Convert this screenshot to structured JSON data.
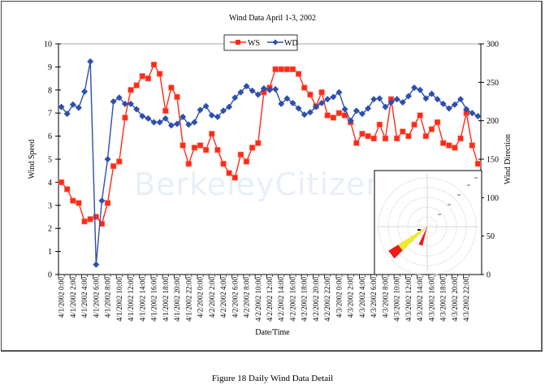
{
  "figure": {
    "caption": "Figure 18  Daily Wind Data Detail",
    "watermark": "BerkeleyCitizen"
  },
  "chart_data": {
    "type": "line",
    "title": "Wind Data April 1-3, 2002",
    "xlabel": "Date/Time",
    "ylabel": "Wind Speed",
    "y2label": "Wind Direction",
    "ylim": [
      0,
      10
    ],
    "y2lim": [
      0,
      300
    ],
    "yticks": [
      0,
      1,
      2,
      3,
      4,
      5,
      6,
      7,
      8,
      9,
      10
    ],
    "y2ticks": [
      0,
      50,
      100,
      150,
      200,
      250,
      300
    ],
    "legend": {
      "position": "top-center",
      "entries": [
        "WS",
        "WD"
      ]
    },
    "grid": false,
    "x_tick_labels": [
      "4/1/2002 0:00",
      "4/1/2002 2:00",
      "4/1/2002 4:00",
      "4/1/2002 6:00",
      "4/1/2002 8:00",
      "4/1/2002 10:00",
      "4/1/2002 12:00",
      "4/1/2002 14:00",
      "4/1/2002 16:00",
      "4/1/2002 18:00",
      "4/1/2002 20:00",
      "4/1/2002 22:00",
      "4/2/2002 0:00",
      "4/2/2002 2:00",
      "4/2/2002 4:00",
      "4/2/2002 6:00",
      "4/2/2002 8:00",
      "4/2/2002 10:00",
      "4/2/2002 12:00",
      "4/2/2002 14:00",
      "4/2/2002 16:00",
      "4/2/2002 18:00",
      "4/2/2002 20:00",
      "4/2/2002 22:00",
      "4/3/2002 0:00",
      "4/3/2002 2:00",
      "4/3/2002 4:00",
      "4/3/2002 6:00",
      "4/3/2002 8:00",
      "4/3/2002 10:00",
      "4/3/2002 12:00",
      "4/3/2002 14:00",
      "4/3/2002 16:00",
      "4/3/2002 18:00",
      "4/3/2002 20:00",
      "4/3/2002 22:00"
    ],
    "series": [
      {
        "name": "WS",
        "axis": "left",
        "color": "#ff2a1a",
        "marker": "square",
        "values": [
          4.0,
          3.7,
          3.2,
          3.1,
          2.3,
          2.4,
          2.5,
          2.2,
          3.1,
          4.7,
          4.9,
          6.8,
          8.0,
          8.2,
          8.6,
          8.5,
          9.1,
          8.7,
          7.1,
          8.1,
          7.7,
          5.6,
          4.8,
          5.5,
          5.6,
          5.4,
          6.1,
          5.4,
          4.8,
          4.4,
          4.2,
          5.2,
          4.9,
          5.5,
          5.7,
          7.9,
          8.1,
          8.9,
          8.9,
          8.9,
          8.9,
          8.7,
          8.1,
          7.8,
          7.3,
          7.9,
          6.9,
          6.8,
          7.0,
          6.9,
          6.6,
          5.7,
          6.1,
          6.0,
          5.9,
          6.5,
          5.9,
          7.6,
          5.9,
          6.2,
          6.0,
          6.5,
          6.9,
          6.0,
          6.3,
          6.6,
          5.7,
          5.6,
          5.5,
          5.9,
          7.0,
          5.6,
          4.8
        ]
      },
      {
        "name": "WD",
        "axis": "right",
        "color": "#2e4fae",
        "marker": "diamond",
        "values": [
          218,
          209,
          221,
          217,
          238,
          277,
          13,
          96,
          150,
          225,
          230,
          222,
          222,
          215,
          206,
          203,
          198,
          198,
          203,
          194,
          196,
          205,
          195,
          198,
          214,
          219,
          207,
          205,
          213,
          218,
          230,
          237,
          245,
          239,
          234,
          242,
          240,
          241,
          222,
          229,
          223,
          216,
          208,
          211,
          218,
          223,
          228,
          231,
          237,
          215,
          200,
          213,
          209,
          216,
          228,
          229,
          218,
          224,
          228,
          224,
          232,
          243,
          240,
          229,
          235,
          228,
          222,
          216,
          221,
          228,
          215,
          210,
          206
        ]
      }
    ],
    "inset": {
      "type": "wind-rose",
      "description": "Polar wind rose inset, dominant petals toward south-west",
      "petals": [
        {
          "color": "#ee1c18",
          "direction_deg": 225,
          "length": 0.95
        },
        {
          "color": "#ecec2a",
          "direction_deg": 230,
          "length": 0.7
        },
        {
          "color": "#ee1c18",
          "direction_deg": 200,
          "length": 0.35
        }
      ]
    }
  }
}
